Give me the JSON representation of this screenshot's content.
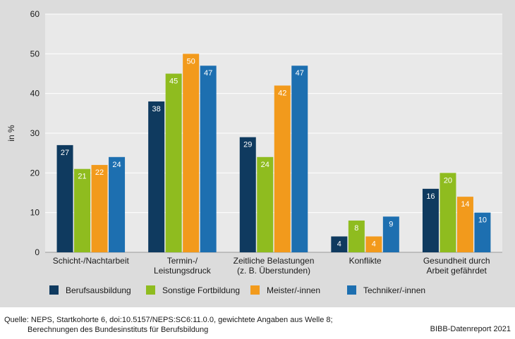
{
  "chart_data": {
    "type": "bar",
    "title": "",
    "xlabel": "",
    "ylabel": "in %",
    "ylim": [
      0,
      60
    ],
    "yticks": [
      0,
      10,
      20,
      30,
      40,
      50,
      60
    ],
    "grid": true,
    "legend_position": "bottom",
    "categories": [
      [
        "Schicht-/Nachtarbeit"
      ],
      [
        "Termin-/",
        "Leistungsdruck"
      ],
      [
        "Zeitliche Belastungen",
        "(z. B. Überstunden)"
      ],
      [
        "Konflikte"
      ],
      [
        "Gesundheit durch",
        "Arbeit gefährdet"
      ]
    ],
    "series": [
      {
        "name": "Berufsausbildung",
        "color": "#0f3a5f",
        "values": [
          27,
          38,
          29,
          4,
          16
        ]
      },
      {
        "name": "Sonstige Fortbildung",
        "color": "#8fbc1f",
        "values": [
          21,
          45,
          24,
          8,
          20
        ]
      },
      {
        "name": "Meister/-innen",
        "color": "#f29a1c",
        "values": [
          22,
          50,
          42,
          4,
          14
        ]
      },
      {
        "name": "Techniker/-innen",
        "color": "#1d6fb0",
        "values": [
          24,
          47,
          47,
          9,
          10
        ]
      }
    ]
  },
  "footer": {
    "source_line1": "Quelle: NEPS, Startkohorte 6, doi:10.5157/NEPS:SC6:11.0.0, gewichtete Angaben aus Welle 8;",
    "source_line2": "Berechnungen des Bundesinstituts für Berufsbildung",
    "credit": "BIBB-Datenreport 2021"
  }
}
